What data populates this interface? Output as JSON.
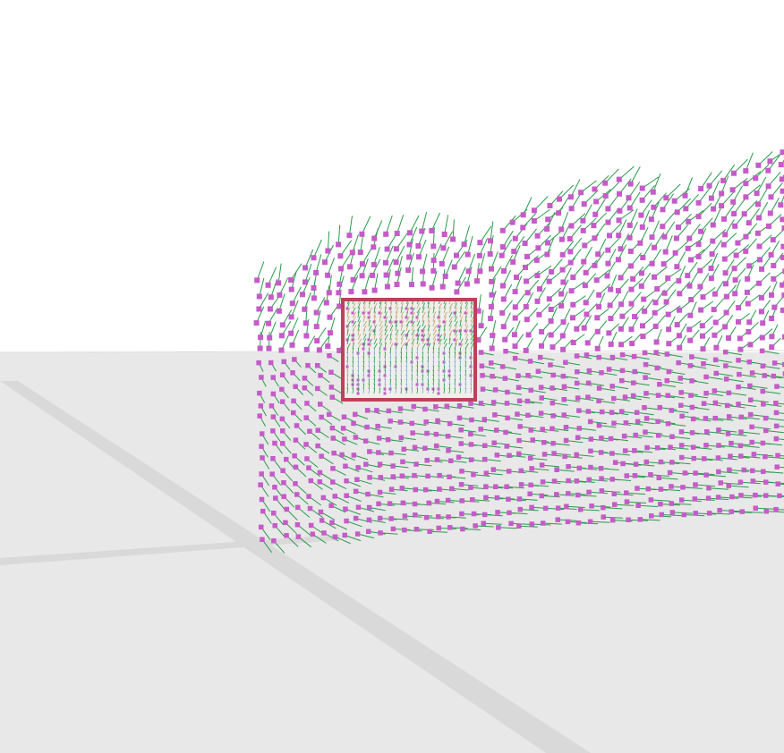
{
  "scene": {
    "sky_color": "#ffffff",
    "ground_color": "#e8e8e8",
    "ground_shadow_color": "#d4d4d4",
    "point_color": "#c55bc8",
    "flow_arrow_color": "#2a9a4a",
    "frame_border_color": "#c0405a",
    "frame_fill_color": "#eef0ec",
    "icons": [
      "point-marker",
      "flow-arrow",
      "camera-frame"
    ]
  }
}
